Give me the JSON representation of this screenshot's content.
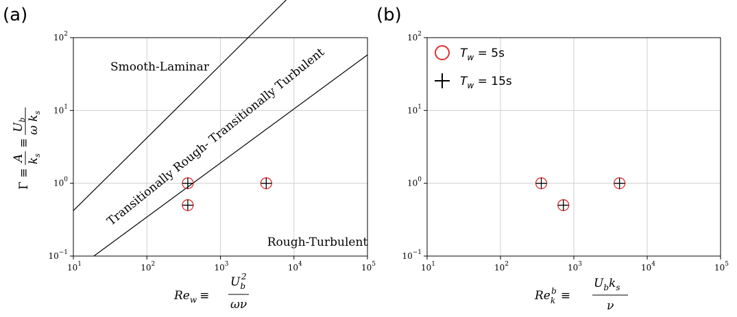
{
  "chart_data": [
    {
      "panel_label": "(a)",
      "type": "scatter",
      "x_scale": "log",
      "y_scale": "log",
      "xlim": [
        10,
        100000
      ],
      "ylim": [
        0.1,
        100
      ],
      "grid": true,
      "x_ticks": [
        {
          "base": "10",
          "exp": "1"
        },
        {
          "base": "10",
          "exp": "2"
        },
        {
          "base": "10",
          "exp": "3"
        },
        {
          "base": "10",
          "exp": "4"
        },
        {
          "base": "10",
          "exp": "5"
        }
      ],
      "y_ticks": [
        {
          "base": "10",
          "exp": "−1"
        },
        {
          "base": "10",
          "exp": "0"
        },
        {
          "base": "10",
          "exp": "1"
        },
        {
          "base": "10",
          "exp": "2"
        }
      ],
      "xlabel": {
        "lhs": "Re",
        "lhs_sub": "w",
        "eq": "≡",
        "num": "U",
        "num_sub": "b",
        "num_sup": "2",
        "den": "ων"
      },
      "ylabel": {
        "lhs": "Γ ≡",
        "frac1_num": "A",
        "frac1_den": "k",
        "frac1_den_sub": "s",
        "eq": "≡",
        "frac2_num": "U",
        "frac2_num_sub": "b",
        "frac2_den": "ω k",
        "frac2_den_sub": "s"
      },
      "regions": [
        {
          "label": "Smooth-Laminar"
        },
        {
          "label": "Transitionally Rough- Transitionally Turbulent"
        },
        {
          "label": "Rough-Turbulent"
        }
      ],
      "boundary_lines": [
        {
          "x": [
            10,
            100000
          ],
          "y": [
            0.42,
            4200
          ]
        },
        {
          "x": [
            19,
            100000
          ],
          "y": [
            0.1,
            58
          ]
        }
      ],
      "series": [
        {
          "marker": "circle",
          "color": "#e03030",
          "points": [
            {
              "x": 360,
              "y": 1.0
            },
            {
              "x": 360,
              "y": 0.5
            },
            {
              "x": 4200,
              "y": 1.0
            }
          ]
        },
        {
          "marker": "plus",
          "color": "#000000",
          "points": [
            {
              "x": 360,
              "y": 1.0
            },
            {
              "x": 360,
              "y": 0.5
            },
            {
              "x": 4200,
              "y": 1.0
            }
          ]
        }
      ]
    },
    {
      "panel_label": "(b)",
      "type": "scatter",
      "x_scale": "log",
      "y_scale": "log",
      "xlim": [
        10,
        100000
      ],
      "ylim": [
        0.1,
        100
      ],
      "grid": true,
      "legend_position": "top-left",
      "x_ticks": [
        {
          "base": "10",
          "exp": "1"
        },
        {
          "base": "10",
          "exp": "2"
        },
        {
          "base": "10",
          "exp": "3"
        },
        {
          "base": "10",
          "exp": "4"
        },
        {
          "base": "10",
          "exp": "5"
        }
      ],
      "y_ticks": [
        {
          "base": "10",
          "exp": "−1"
        },
        {
          "base": "10",
          "exp": "0"
        },
        {
          "base": "10",
          "exp": "1"
        },
        {
          "base": "10",
          "exp": "2"
        }
      ],
      "xlabel": {
        "lhs": "Re",
        "lhs_sub": "k",
        "lhs_sup": "b",
        "eq": "≡",
        "num": "U",
        "num_sub": "b",
        "num_tail": "k",
        "num_tail_sub": "s",
        "den": "ν"
      },
      "series": [
        {
          "name": {
            "var": "T",
            "sub": "w",
            "rest": " = 5s"
          },
          "marker": "circle",
          "color": "#e03030",
          "points": [
            {
              "x": 360,
              "y": 1.0
            },
            {
              "x": 720,
              "y": 0.5
            },
            {
              "x": 4200,
              "y": 1.0
            }
          ]
        },
        {
          "name": {
            "var": "T",
            "sub": "w",
            "rest": " = 15s"
          },
          "marker": "plus",
          "color": "#000000",
          "points": [
            {
              "x": 360,
              "y": 1.0
            },
            {
              "x": 720,
              "y": 0.5
            },
            {
              "x": 4200,
              "y": 1.0
            }
          ]
        }
      ]
    }
  ]
}
